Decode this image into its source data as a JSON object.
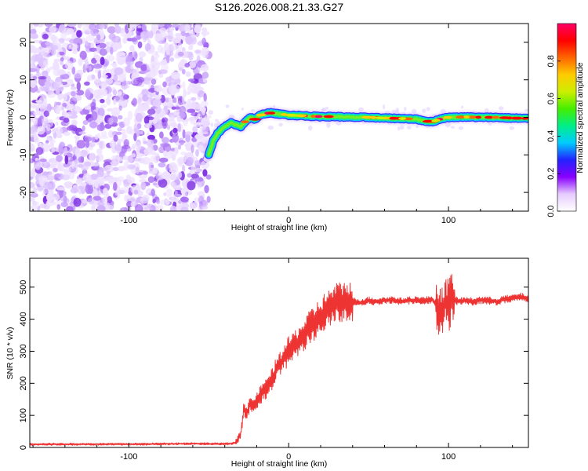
{
  "title": "S126.2026.008.21.33.G27",
  "chart_data": [
    {
      "type": "heatmap",
      "name": "spectrogram",
      "xlabel": "Height of straight line (km)",
      "ylabel": "Frequency (Hz)",
      "xlim": [
        -162,
        150
      ],
      "ylim": [
        -25,
        25
      ],
      "xticks": [
        -100,
        0,
        100
      ],
      "yticks": [
        20,
        10,
        0,
        -10,
        -20
      ],
      "noise_region_x": [
        -162,
        -50
      ],
      "signal_track": {
        "x": [
          -50,
          -47,
          -44,
          -40,
          -36,
          -33,
          -30,
          -27,
          -24,
          -21,
          -18,
          -15,
          -12,
          -8,
          -4,
          0,
          10,
          20,
          30,
          40,
          50,
          60,
          70,
          80,
          86,
          90,
          95,
          100,
          110,
          120,
          130,
          140,
          150
        ],
        "y": [
          -10,
          -6,
          -4,
          -2.5,
          -1.5,
          -2.0,
          -2.5,
          -1.0,
          0.0,
          -0.5,
          0.5,
          1.0,
          1.2,
          1.0,
          0.8,
          0.6,
          0.4,
          0.2,
          0.2,
          0.0,
          0.0,
          -0.2,
          -0.3,
          -0.5,
          -1.0,
          -1.2,
          -0.4,
          0.0,
          0.1,
          0.0,
          0.0,
          -0.2,
          -0.3
        ]
      },
      "colorbar": {
        "label": "Normalized spectral amplitude",
        "range": [
          0,
          1
        ],
        "ticks": [
          0.0,
          0.2,
          0.4,
          0.6,
          0.8
        ],
        "tick_labels": [
          "0.0",
          "0.2",
          "0.4",
          "0.6",
          "0.8"
        ],
        "colors": [
          "#ffffff",
          "#e6ccff",
          "#8800ff",
          "#2222ff",
          "#00ccff",
          "#00ee88",
          "#44ee00",
          "#ccee00",
          "#ffcc00",
          "#ff6600",
          "#ff0000",
          "#ff0066"
        ]
      }
    },
    {
      "type": "line",
      "name": "snr",
      "xlabel": "Height of straight line (km)",
      "ylabel": "SNR (10 * v/v)",
      "xlim": [
        -162,
        150
      ],
      "ylim": [
        0,
        590
      ],
      "xticks": [
        -100,
        0,
        100
      ],
      "yticks": [
        0,
        100,
        200,
        300,
        400,
        500
      ],
      "color": "#ee3333",
      "series": [
        {
          "name": "SNR",
          "x": [
            -162,
            -140,
            -120,
            -100,
            -80,
            -60,
            -40,
            -36,
            -33,
            -30,
            -28,
            -26,
            -24,
            -22,
            -20,
            -18,
            -16,
            -14,
            -12,
            -10,
            -8,
            -6,
            -4,
            -2,
            0,
            2,
            4,
            6,
            8,
            10,
            12,
            14,
            16,
            18,
            20,
            22,
            24,
            26,
            28,
            30,
            32,
            34,
            36,
            38,
            40,
            45,
            50,
            55,
            60,
            65,
            70,
            75,
            80,
            85,
            90,
            93,
            96,
            98,
            100,
            102,
            104,
            106,
            110,
            115,
            120,
            125,
            130,
            135,
            140,
            145,
            150
          ],
          "y": [
            10,
            10,
            10,
            10,
            11,
            12,
            11,
            12,
            15,
            45,
            120,
            110,
            140,
            120,
            150,
            160,
            175,
            185,
            200,
            215,
            240,
            255,
            270,
            285,
            300,
            310,
            320,
            330,
            340,
            355,
            365,
            380,
            390,
            400,
            405,
            420,
            430,
            435,
            445,
            450,
            455,
            455,
            458,
            460,
            455,
            452,
            458,
            455,
            458,
            460,
            455,
            458,
            460,
            458,
            462,
            440,
            420,
            460,
            440,
            470,
            460,
            455,
            458,
            455,
            460,
            458,
            455,
            462,
            465,
            470,
            465
          ]
        }
      ]
    }
  ]
}
